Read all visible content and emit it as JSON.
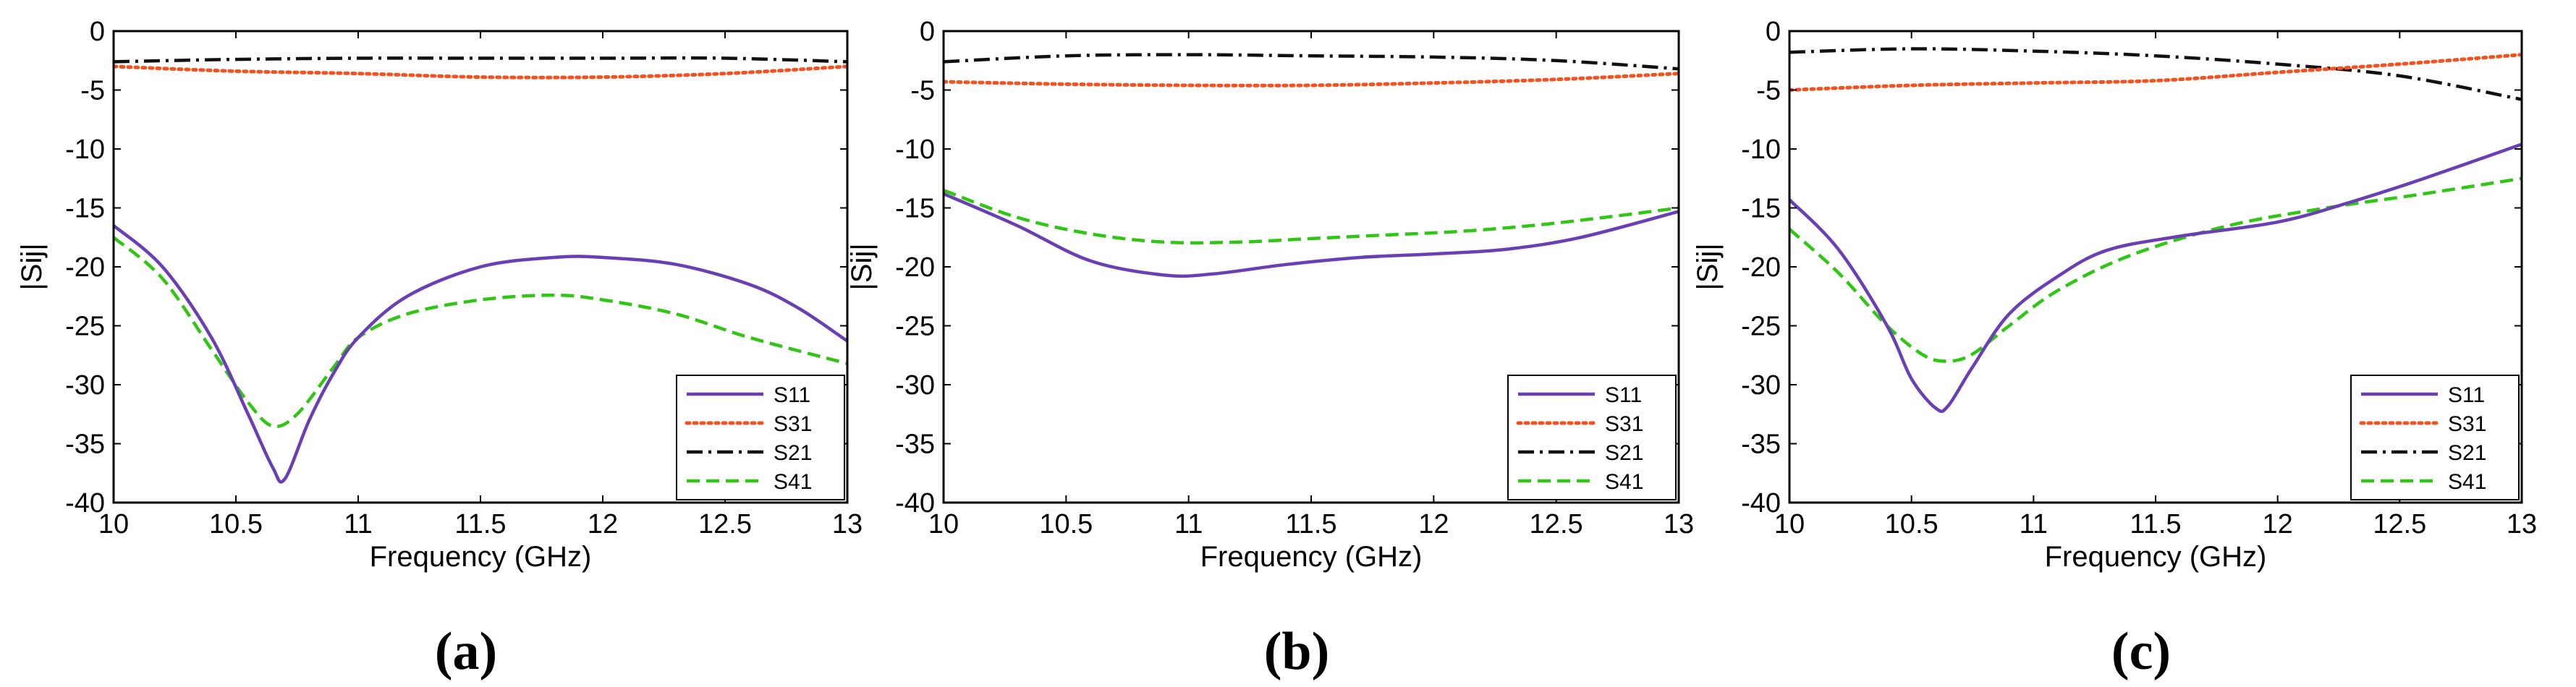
{
  "colors": {
    "S11": "#6a3fb5",
    "S31": "#f4511e",
    "S21": "#111111",
    "S41": "#2fc614",
    "axis": "#000000",
    "background": "#ffffff"
  },
  "chart_data": [
    {
      "type": "line",
      "panel": "(a)",
      "xlabel": "Frequency (GHz)",
      "ylabel": "|Sij|",
      "xlim": [
        10,
        13
      ],
      "ylim": [
        -40,
        0
      ],
      "xticks": [
        10,
        10.5,
        11,
        11.5,
        12,
        12.5,
        13
      ],
      "xtick_labels": [
        "10",
        "10.5",
        "11",
        "11.5",
        "12",
        "12.5",
        "13"
      ],
      "yticks": [
        0,
        -5,
        -10,
        -15,
        -20,
        -25,
        -30,
        -35,
        -40
      ],
      "ytick_labels": [
        "0",
        "-5",
        "-10",
        "-15",
        "-20",
        "-25",
        "-30",
        "-35",
        "-40"
      ],
      "grid": false,
      "legend_position": "bottom-right",
      "series": [
        {
          "name": "S11",
          "style": "solid",
          "x": [
            10,
            10.2,
            10.4,
            10.55,
            10.65,
            10.7,
            10.8,
            10.9,
            11,
            11.2,
            11.5,
            11.8,
            12,
            12.3,
            12.6,
            12.8,
            13
          ],
          "values": [
            -16.5,
            -20,
            -26,
            -32.5,
            -37,
            -38,
            -33,
            -29,
            -26,
            -22.5,
            -20,
            -19.2,
            -19.2,
            -19.8,
            -21.5,
            -23.5,
            -26.3
          ]
        },
        {
          "name": "S31",
          "style": "dotted",
          "x": [
            10,
            10.5,
            11,
            11.5,
            12,
            12.5,
            13
          ],
          "values": [
            -3.0,
            -3.4,
            -3.6,
            -3.9,
            -3.9,
            -3.6,
            -3.0
          ]
        },
        {
          "name": "S21",
          "style": "dashdot",
          "x": [
            10,
            10.5,
            11,
            11.5,
            12,
            12.5,
            13
          ],
          "values": [
            -2.6,
            -2.4,
            -2.3,
            -2.3,
            -2.3,
            -2.3,
            -2.6
          ]
        },
        {
          "name": "S41",
          "style": "dashed",
          "x": [
            10,
            10.2,
            10.4,
            10.55,
            10.65,
            10.75,
            10.9,
            11,
            11.2,
            11.5,
            11.8,
            12,
            12.3,
            12.6,
            13
          ],
          "values": [
            -17.5,
            -21,
            -27,
            -31.5,
            -33.5,
            -32.5,
            -28.5,
            -26,
            -24,
            -22.8,
            -22.4,
            -22.8,
            -24,
            -26,
            -28.2
          ]
        }
      ]
    },
    {
      "type": "line",
      "panel": "(b)",
      "xlabel": "Frequency (GHz)",
      "ylabel": "|Sij|",
      "xlim": [
        10,
        13
      ],
      "ylim": [
        -40,
        0
      ],
      "xticks": [
        10,
        10.5,
        11,
        11.5,
        12,
        12.5,
        13
      ],
      "xtick_labels": [
        "10",
        "10.5",
        "11",
        "11.5",
        "12",
        "12.5",
        "13"
      ],
      "yticks": [
        0,
        -5,
        -10,
        -15,
        -20,
        -25,
        -30,
        -35,
        -40
      ],
      "ytick_labels": [
        "0",
        "-5",
        "-10",
        "-15",
        "-20",
        "-25",
        "-30",
        "-35",
        "-40"
      ],
      "grid": false,
      "legend_position": "bottom-right",
      "series": [
        {
          "name": "S11",
          "style": "solid",
          "x": [
            10,
            10.3,
            10.6,
            10.9,
            11.1,
            11.4,
            11.7,
            12,
            12.3,
            12.6,
            13
          ],
          "values": [
            -13.8,
            -16.5,
            -19.5,
            -20.7,
            -20.6,
            -19.8,
            -19.2,
            -18.9,
            -18.5,
            -17.5,
            -15.3
          ]
        },
        {
          "name": "S31",
          "style": "dotted",
          "x": [
            10,
            10.5,
            11,
            11.5,
            12,
            12.5,
            13
          ],
          "values": [
            -4.3,
            -4.5,
            -4.6,
            -4.6,
            -4.4,
            -4.1,
            -3.6
          ]
        },
        {
          "name": "S21",
          "style": "dashdot",
          "x": [
            10,
            10.5,
            11,
            11.5,
            12,
            12.5,
            13
          ],
          "values": [
            -2.6,
            -2.1,
            -2.0,
            -2.1,
            -2.2,
            -2.5,
            -3.2
          ]
        },
        {
          "name": "S41",
          "style": "dashed",
          "x": [
            10,
            10.3,
            10.6,
            10.9,
            11.2,
            11.5,
            11.8,
            12.1,
            12.4,
            12.7,
            13
          ],
          "values": [
            -13.5,
            -15.8,
            -17.2,
            -17.9,
            -17.9,
            -17.6,
            -17.3,
            -17.0,
            -16.5,
            -15.8,
            -15.0
          ]
        }
      ]
    },
    {
      "type": "line",
      "panel": "(c)",
      "xlabel": "Frequency (GHz)",
      "ylabel": "|Sij|",
      "xlim": [
        10,
        13
      ],
      "ylim": [
        -40,
        0
      ],
      "xticks": [
        10,
        10.5,
        11,
        11.5,
        12,
        12.5,
        13
      ],
      "xtick_labels": [
        "10",
        "10.5",
        "11",
        "11.5",
        "12",
        "12.5",
        "13"
      ],
      "yticks": [
        0,
        -5,
        -10,
        -15,
        -20,
        -25,
        -30,
        -35,
        -40
      ],
      "ytick_labels": [
        "0",
        "-5",
        "-10",
        "-15",
        "-20",
        "-25",
        "-30",
        "-35",
        "-40"
      ],
      "grid": false,
      "legend_position": "bottom-right",
      "series": [
        {
          "name": "S11",
          "style": "solid",
          "x": [
            10,
            10.2,
            10.4,
            10.5,
            10.6,
            10.65,
            10.75,
            10.9,
            11.1,
            11.3,
            11.6,
            12,
            12.3,
            12.6,
            13
          ],
          "values": [
            -14.3,
            -18.5,
            -25,
            -29.5,
            -32,
            -31.8,
            -28.5,
            -24,
            -20.8,
            -18.6,
            -17.4,
            -16.2,
            -14.5,
            -12.5,
            -9.6
          ]
        },
        {
          "name": "S31",
          "style": "dotted",
          "x": [
            10,
            10.5,
            11,
            11.5,
            12,
            12.5,
            13
          ],
          "values": [
            -5.0,
            -4.6,
            -4.4,
            -4.2,
            -3.5,
            -2.8,
            -2.0
          ]
        },
        {
          "name": "S21",
          "style": "dashdot",
          "x": [
            10,
            10.5,
            11,
            11.5,
            12,
            12.5,
            13
          ],
          "values": [
            -1.8,
            -1.5,
            -1.7,
            -2.1,
            -2.8,
            -3.8,
            -5.8
          ]
        },
        {
          "name": "S41",
          "style": "dashed",
          "x": [
            10,
            10.2,
            10.4,
            10.55,
            10.65,
            10.75,
            10.9,
            11.1,
            11.4,
            11.8,
            12.2,
            12.6,
            13
          ],
          "values": [
            -16.8,
            -20.5,
            -25,
            -27.5,
            -28,
            -27.4,
            -25,
            -22,
            -19,
            -16.5,
            -15.0,
            -13.8,
            -12.5
          ]
        }
      ]
    }
  ]
}
